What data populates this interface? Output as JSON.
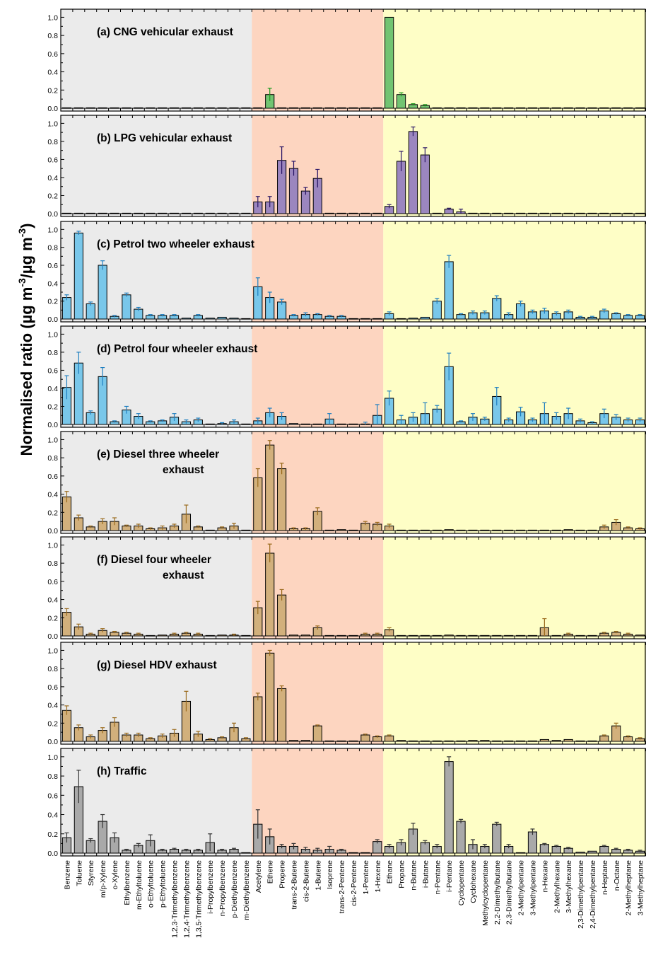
{
  "figure": {
    "ylabel_main": "Normalised ratio (µg m",
    "ylabel_exp1": "-3",
    "ylabel_mid": "/µg m",
    "ylabel_exp2": "-3",
    "ylabel_end": ")"
  },
  "colors": {
    "aromatics_bg": "#ebebeb",
    "alkenes_bg": "#fdd5c0",
    "alkanes_bg": "#fefec6"
  },
  "chart_data": {
    "type": "bar",
    "categories": [
      "Benzene",
      "Toluene",
      "Styrene",
      "m/p-Xylene",
      "o-Xylene",
      "Ethylbenzene",
      "m-Ethyltoluene",
      "o-Ethyltoluene",
      "p-Ethyltoluene",
      "1,2,3-Trimethylbenzene",
      "1,2,4-Trimethylbenzene",
      "1,3,5-Trimethylbenzene",
      "i-Propylbenzene",
      "n-Propylbenzene",
      "p-Diethylbenzene",
      "m-Diethylbenzene",
      "Acetylene",
      "Ethene",
      "Propene",
      "trans-2-Butene",
      "cis-2-Butene",
      "1-Butene",
      "Isoprene",
      "trans-2-Pentene",
      "cis-2-Pentene",
      "1-Pentene",
      "1-Hexene",
      "Ethane",
      "Propane",
      "n-Butane",
      "i-Butane",
      "n-Pentane",
      "i-Pentane",
      "Cyclopentane",
      "Cyclohexane",
      "Methylcyclopentane",
      "2,2-Dimethylbutane",
      "2,3-Dimethylbutane",
      "2-Methylpentane",
      "3-Methylpentane",
      "n-Hexane",
      "2-Methylhexane",
      "3-Methylhexane",
      "2,3-Dimethylpentane",
      "2,4-Dimethylpentane",
      "n-Heptane",
      "n-Octane",
      "2-Methylheptane",
      "3-Methylheptane"
    ],
    "regions": [
      {
        "name": "aromatics",
        "start": 0,
        "end": 15,
        "color": "#ebebeb"
      },
      {
        "name": "alkenes",
        "start": 16,
        "end": 26,
        "color": "#fdd5c0"
      },
      {
        "name": "alkanes",
        "start": 27,
        "end": 48,
        "color": "#fefec6"
      }
    ],
    "ylim": [
      0,
      1.05
    ],
    "yticks": [
      "0.0",
      "0.2",
      "0.4",
      "0.6",
      "0.8",
      "1.0"
    ],
    "panels": [
      {
        "title": [
          "(a) CNG vehicular exhaust"
        ],
        "color": "#72c472",
        "values": [
          0.005,
          0.005,
          0.005,
          0.005,
          0.005,
          0.005,
          0.005,
          0.005,
          0.005,
          0.005,
          0.005,
          0.005,
          0.005,
          0.005,
          0.005,
          0.005,
          0.005,
          0.15,
          0.005,
          0.005,
          0.005,
          0.005,
          0.005,
          0.005,
          0.005,
          0.005,
          0.005,
          1.0,
          0.15,
          0.04,
          0.03,
          0.005,
          0.005,
          0.005,
          0.005,
          0.005,
          0.005,
          0.005,
          0.005,
          0.005,
          0.005,
          0.005,
          0.005,
          0.005,
          0.005,
          0.005,
          0.005,
          0.005,
          0.005
        ],
        "errors": [
          0,
          0,
          0,
          0,
          0,
          0,
          0,
          0,
          0,
          0,
          0,
          0,
          0,
          0,
          0,
          0,
          0,
          0.07,
          0,
          0,
          0,
          0,
          0,
          0,
          0,
          0,
          0,
          0.005,
          0.02,
          0.01,
          0.01,
          0,
          0,
          0,
          0,
          0,
          0,
          0,
          0,
          0,
          0,
          0,
          0,
          0,
          0,
          0,
          0,
          0,
          0
        ]
      },
      {
        "title": [
          "(b) LPG vehicular exhaust"
        ],
        "color": "#9b86bf",
        "values": [
          0.005,
          0.005,
          0.005,
          0.005,
          0.005,
          0.005,
          0.005,
          0.005,
          0.005,
          0.005,
          0.005,
          0.005,
          0.005,
          0.005,
          0.005,
          0.005,
          0.13,
          0.13,
          0.59,
          0.5,
          0.25,
          0.39,
          0.005,
          0.005,
          0.005,
          0.005,
          0.005,
          0.08,
          0.58,
          0.91,
          0.65,
          0.005,
          0.05,
          0.02,
          0.005,
          0.005,
          0.005,
          0.005,
          0.005,
          0.005,
          0.005,
          0.005,
          0.005,
          0.005,
          0.005,
          0.005,
          0.005,
          0.005,
          0.005
        ],
        "errors": [
          0,
          0,
          0,
          0,
          0,
          0,
          0,
          0,
          0,
          0,
          0,
          0,
          0,
          0,
          0,
          0,
          0.06,
          0.06,
          0.15,
          0.08,
          0.04,
          0.1,
          0,
          0,
          0,
          0,
          0,
          0.02,
          0.11,
          0.05,
          0.08,
          0,
          0.01,
          0.03,
          0,
          0,
          0,
          0,
          0,
          0,
          0,
          0,
          0,
          0,
          0,
          0,
          0,
          0,
          0
        ]
      },
      {
        "title": [
          "(c) Petrol two wheeler exhaust"
        ],
        "color": "#79c7ea",
        "values": [
          0.24,
          0.96,
          0.17,
          0.6,
          0.03,
          0.27,
          0.11,
          0.04,
          0.04,
          0.04,
          0.01,
          0.04,
          0.01,
          0.02,
          0.01,
          0.005,
          0.36,
          0.24,
          0.19,
          0.04,
          0.05,
          0.05,
          0.03,
          0.03,
          0.005,
          0.005,
          0.005,
          0.06,
          0.005,
          0.01,
          0.02,
          0.2,
          0.64,
          0.05,
          0.07,
          0.07,
          0.23,
          0.05,
          0.17,
          0.08,
          0.09,
          0.06,
          0.08,
          0.02,
          0.02,
          0.09,
          0.06,
          0.04,
          0.04
        ],
        "errors": [
          0.03,
          0.02,
          0.02,
          0.05,
          0.01,
          0.02,
          0.02,
          0.01,
          0.01,
          0.01,
          0.005,
          0.01,
          0.005,
          0.005,
          0.005,
          0.005,
          0.1,
          0.06,
          0.03,
          0.01,
          0.02,
          0.01,
          0.01,
          0.01,
          0.005,
          0.005,
          0.005,
          0.02,
          0.005,
          0.005,
          0.005,
          0.03,
          0.07,
          0.01,
          0.02,
          0.02,
          0.03,
          0.02,
          0.03,
          0.02,
          0.03,
          0.02,
          0.02,
          0.01,
          0.01,
          0.02,
          0.01,
          0.01,
          0.01
        ]
      },
      {
        "title": [
          "(d) Petrol four wheeler exhaust"
        ],
        "color": "#79c7ea",
        "values": [
          0.41,
          0.68,
          0.13,
          0.53,
          0.03,
          0.16,
          0.09,
          0.03,
          0.04,
          0.08,
          0.03,
          0.05,
          0.005,
          0.01,
          0.03,
          0.005,
          0.04,
          0.13,
          0.09,
          0.01,
          0.005,
          0.005,
          0.06,
          0.005,
          0.005,
          0.005,
          0.1,
          0.29,
          0.05,
          0.08,
          0.12,
          0.17,
          0.64,
          0.03,
          0.08,
          0.06,
          0.31,
          0.05,
          0.14,
          0.05,
          0.12,
          0.09,
          0.12,
          0.04,
          0.02,
          0.12,
          0.08,
          0.05,
          0.05
        ],
        "errors": [
          0.13,
          0.12,
          0.02,
          0.1,
          0.01,
          0.04,
          0.03,
          0.01,
          0.01,
          0.04,
          0.02,
          0.02,
          0.005,
          0.01,
          0.02,
          0.005,
          0.03,
          0.05,
          0.04,
          0.005,
          0.005,
          0.005,
          0.06,
          0.005,
          0.005,
          0.02,
          0.12,
          0.08,
          0.05,
          0.05,
          0.12,
          0.04,
          0.15,
          0.01,
          0.04,
          0.02,
          0.1,
          0.02,
          0.05,
          0.02,
          0.12,
          0.04,
          0.06,
          0.02,
          0.01,
          0.05,
          0.03,
          0.02,
          0.02
        ]
      },
      {
        "title": [
          "(e) Diesel three wheeler",
          "exhaust"
        ],
        "color": "#d2b07c",
        "values": [
          0.37,
          0.14,
          0.04,
          0.1,
          0.1,
          0.05,
          0.05,
          0.02,
          0.03,
          0.05,
          0.18,
          0.04,
          0.005,
          0.03,
          0.05,
          0.005,
          0.58,
          0.94,
          0.68,
          0.02,
          0.02,
          0.21,
          0.005,
          0.01,
          0.005,
          0.08,
          0.07,
          0.05,
          0.005,
          0.005,
          0.005,
          0.005,
          0.01,
          0.005,
          0.005,
          0.005,
          0.005,
          0.005,
          0.005,
          0.005,
          0.005,
          0.005,
          0.01,
          0.005,
          0.005,
          0.04,
          0.09,
          0.03,
          0.02
        ],
        "errors": [
          0.06,
          0.03,
          0.01,
          0.03,
          0.04,
          0.01,
          0.02,
          0.01,
          0.02,
          0.02,
          0.1,
          0.01,
          0.005,
          0.01,
          0.03,
          0.005,
          0.1,
          0.05,
          0.06,
          0.01,
          0.01,
          0.04,
          0.005,
          0.005,
          0.005,
          0.02,
          0.02,
          0.02,
          0.005,
          0.005,
          0.005,
          0.005,
          0.005,
          0.005,
          0.005,
          0.005,
          0.005,
          0.005,
          0.005,
          0.005,
          0.005,
          0.005,
          0.005,
          0.005,
          0.005,
          0.02,
          0.03,
          0.01,
          0.01
        ]
      },
      {
        "title": [
          "(f) Diesel four wheeler",
          "exhaust"
        ],
        "color": "#d2b07c",
        "values": [
          0.26,
          0.1,
          0.02,
          0.06,
          0.04,
          0.03,
          0.02,
          0.005,
          0.01,
          0.02,
          0.03,
          0.02,
          0.005,
          0.01,
          0.01,
          0.005,
          0.31,
          0.91,
          0.45,
          0.01,
          0.01,
          0.09,
          0.005,
          0.005,
          0.005,
          0.02,
          0.02,
          0.07,
          0.005,
          0.005,
          0.005,
          0.005,
          0.01,
          0.005,
          0.005,
          0.005,
          0.005,
          0.005,
          0.005,
          0.005,
          0.09,
          0.005,
          0.02,
          0.005,
          0.005,
          0.03,
          0.04,
          0.02,
          0.01
        ],
        "errors": [
          0.04,
          0.03,
          0.01,
          0.02,
          0.01,
          0.01,
          0.01,
          0.005,
          0.005,
          0.01,
          0.01,
          0.01,
          0.005,
          0.005,
          0.01,
          0.005,
          0.07,
          0.1,
          0.06,
          0.005,
          0.005,
          0.02,
          0.005,
          0.005,
          0.005,
          0.01,
          0.01,
          0.02,
          0.005,
          0.005,
          0.005,
          0.005,
          0.005,
          0.005,
          0.005,
          0.005,
          0.005,
          0.005,
          0.005,
          0.005,
          0.1,
          0.005,
          0.01,
          0.005,
          0.005,
          0.01,
          0.01,
          0.01,
          0.005
        ]
      },
      {
        "title": [
          "(g) Diesel HDV exhaust"
        ],
        "color": "#d2b07c",
        "values": [
          0.34,
          0.15,
          0.05,
          0.12,
          0.21,
          0.07,
          0.07,
          0.03,
          0.06,
          0.09,
          0.44,
          0.08,
          0.02,
          0.04,
          0.15,
          0.03,
          0.49,
          0.97,
          0.58,
          0.01,
          0.01,
          0.17,
          0.005,
          0.005,
          0.005,
          0.07,
          0.05,
          0.06,
          0.01,
          0.005,
          0.005,
          0.005,
          0.005,
          0.005,
          0.01,
          0.01,
          0.005,
          0.005,
          0.005,
          0.005,
          0.02,
          0.01,
          0.02,
          0.005,
          0.005,
          0.06,
          0.17,
          0.05,
          0.03
        ],
        "errors": [
          0.05,
          0.03,
          0.02,
          0.03,
          0.05,
          0.02,
          0.02,
          0.01,
          0.02,
          0.04,
          0.11,
          0.03,
          0.01,
          0.01,
          0.05,
          0.01,
          0.04,
          0.03,
          0.03,
          0.005,
          0.005,
          0.01,
          0.005,
          0.005,
          0.005,
          0.01,
          0.01,
          0.01,
          0.005,
          0.005,
          0.005,
          0.005,
          0.005,
          0.005,
          0.005,
          0.005,
          0.005,
          0.005,
          0.005,
          0.005,
          0.005,
          0.005,
          0.005,
          0.005,
          0.005,
          0.01,
          0.03,
          0.01,
          0.01
        ]
      },
      {
        "title": [
          "(h) Traffic"
        ],
        "color": "#a9a9a9",
        "values": [
          0.16,
          0.69,
          0.13,
          0.33,
          0.16,
          0.03,
          0.08,
          0.13,
          0.03,
          0.04,
          0.03,
          0.03,
          0.11,
          0.03,
          0.04,
          0.005,
          0.3,
          0.17,
          0.07,
          0.07,
          0.04,
          0.03,
          0.04,
          0.03,
          0.005,
          0.005,
          0.12,
          0.07,
          0.11,
          0.25,
          0.11,
          0.07,
          0.95,
          0.33,
          0.09,
          0.07,
          0.3,
          0.07,
          0.005,
          0.22,
          0.09,
          0.07,
          0.05,
          0.01,
          0.02,
          0.07,
          0.04,
          0.03,
          0.02
        ],
        "errors": [
          0.05,
          0.17,
          0.02,
          0.07,
          0.05,
          0.01,
          0.02,
          0.06,
          0.01,
          0.01,
          0.01,
          0.01,
          0.09,
          0.01,
          0.01,
          0.005,
          0.15,
          0.08,
          0.02,
          0.03,
          0.02,
          0.02,
          0.03,
          0.01,
          0.005,
          0.005,
          0.02,
          0.02,
          0.03,
          0.06,
          0.02,
          0.02,
          0.05,
          0.02,
          0.05,
          0.02,
          0.02,
          0.02,
          0.005,
          0.03,
          0.01,
          0.01,
          0.01,
          0.005,
          0.005,
          0.01,
          0.01,
          0.01,
          0.01
        ]
      }
    ]
  }
}
